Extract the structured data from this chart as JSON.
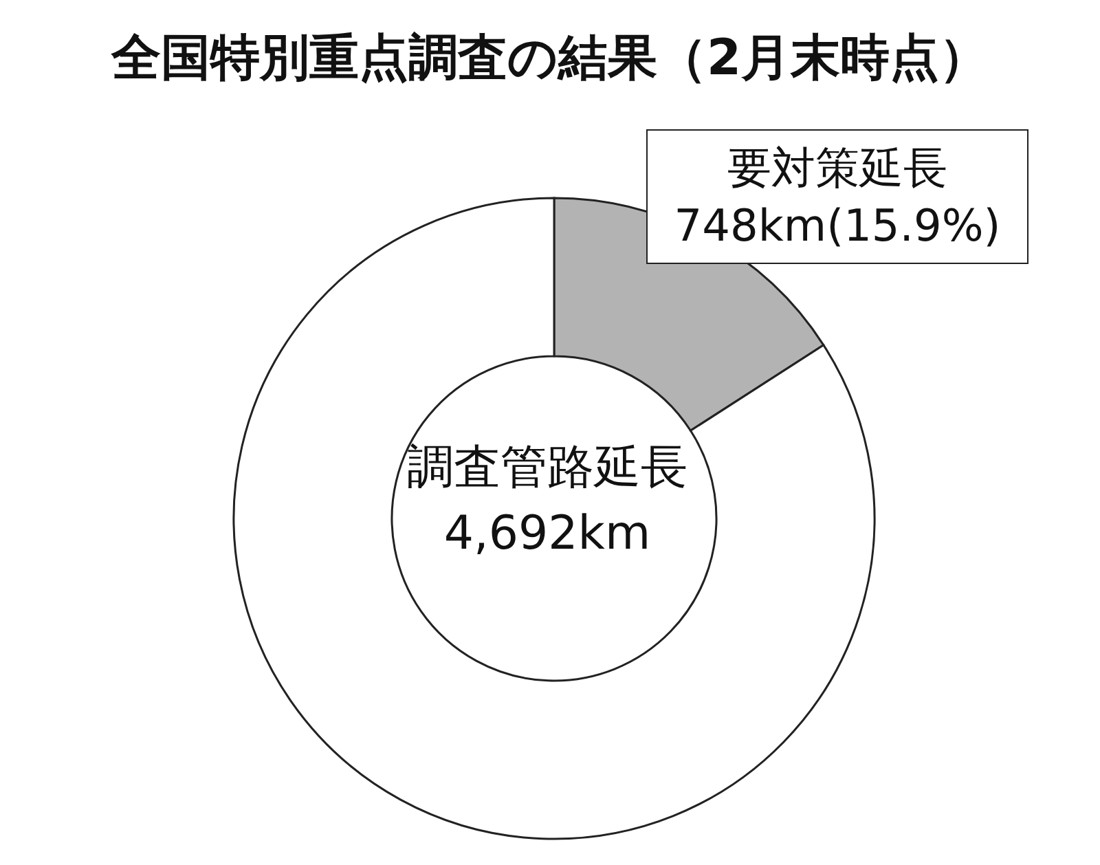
{
  "chart_data": {
    "type": "donut",
    "title": "全国特別重点調査の結果（2月末時点）",
    "categories": [
      "要対策延長",
      null
    ],
    "values": [
      15.9,
      84.1
    ],
    "colors": [
      "#b3b3b3",
      "#ffffff"
    ],
    "value_labels": [
      "748km(15.9%)",
      null
    ],
    "annotations": [
      "調査管路延長",
      "4,692km"
    ]
  }
}
